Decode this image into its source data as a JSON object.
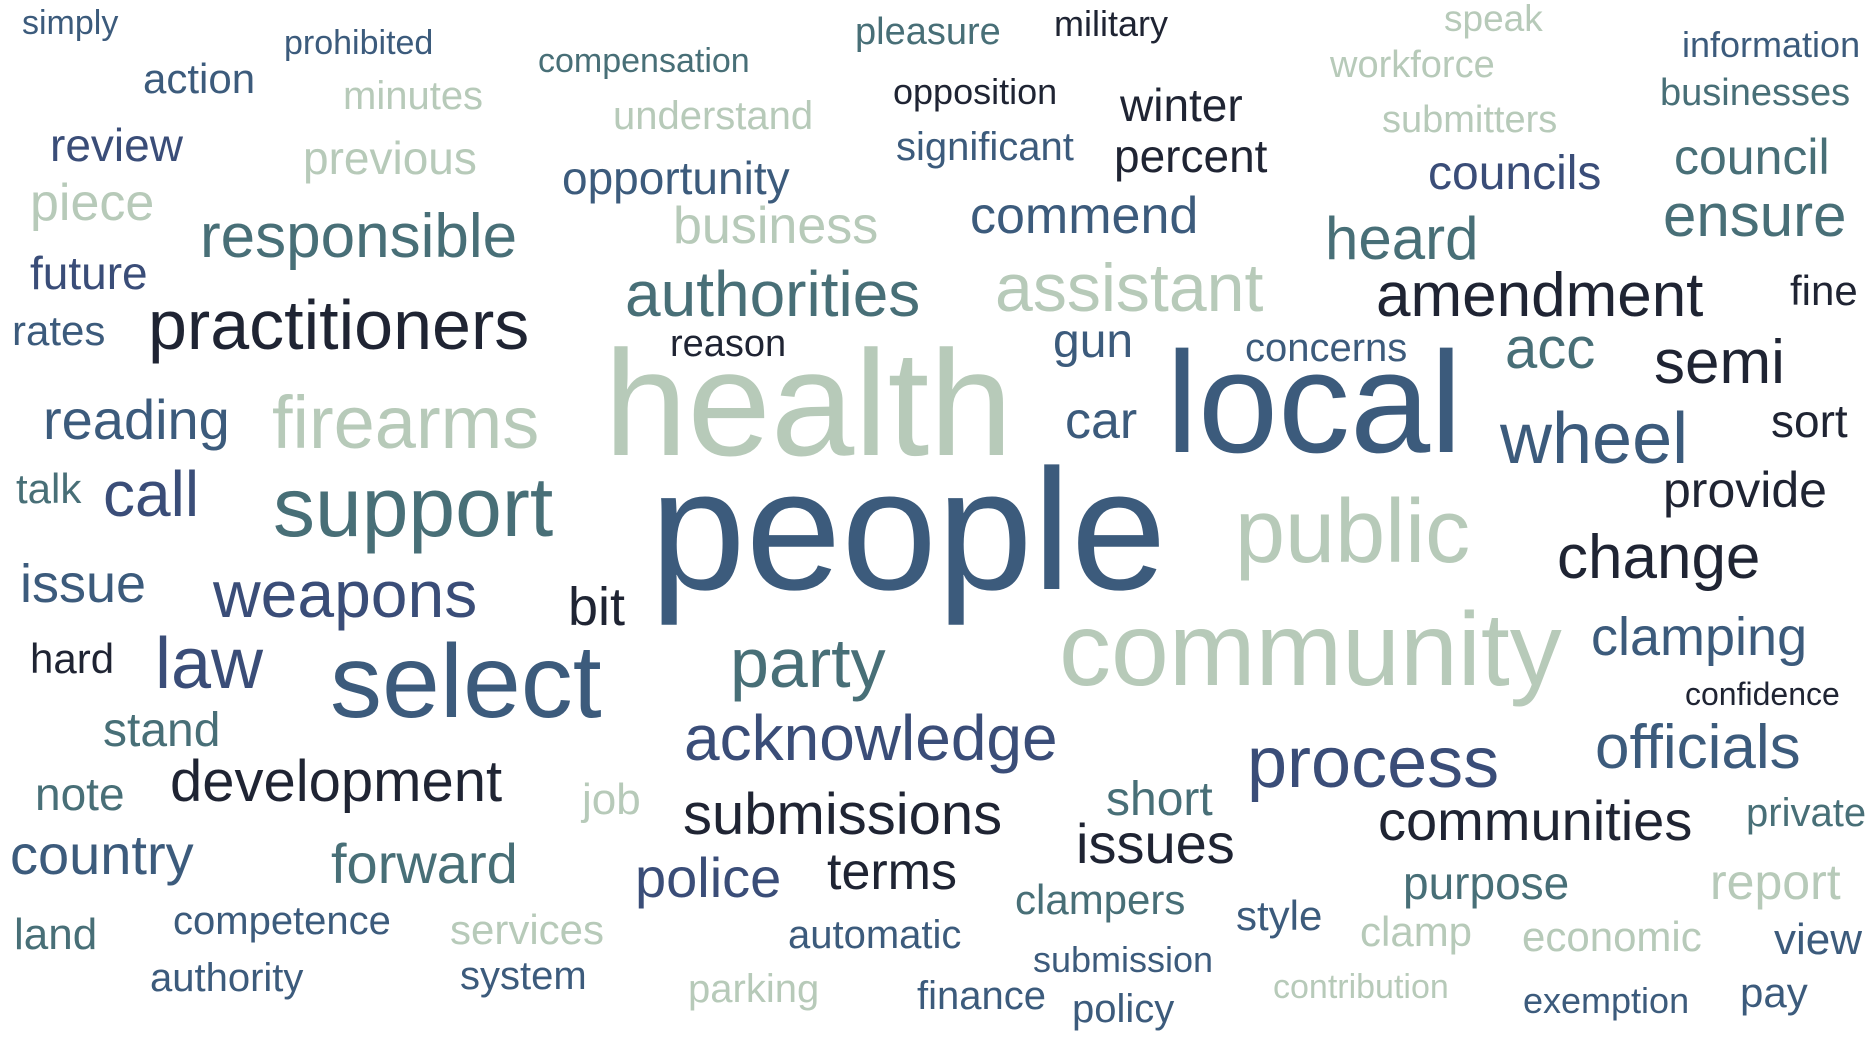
{
  "words": [
    "simply",
    "prohibited",
    "pleasure",
    "military",
    "speak",
    "information",
    "action",
    "compensation",
    "minutes",
    "opposition",
    "workforce",
    "businesses",
    "review",
    "understand",
    "winter",
    "submitters",
    "previous",
    "significant",
    "percent",
    "council",
    "opportunity",
    "councils",
    "piece",
    "business",
    "commend",
    "ensure",
    "responsible",
    "heard",
    "future",
    "authorities",
    "assistant",
    "amendment",
    "fine",
    "rates",
    "practitioners",
    "reason",
    "gun",
    "concerns",
    "acc",
    "semi",
    "health",
    "local",
    "reading",
    "firearms",
    "car",
    "sort",
    "wheel",
    "talk",
    "call",
    "support",
    "provide",
    "people",
    "public",
    "change",
    "issue",
    "weapons",
    "bit",
    "hard",
    "law",
    "select",
    "party",
    "community",
    "clamping",
    "confidence",
    "stand",
    "acknowledge",
    "officials",
    "process",
    "note",
    "development",
    "job",
    "short",
    "submissions",
    "private",
    "communities",
    "country",
    "forward",
    "issues",
    "police",
    "terms",
    "report",
    "purpose",
    "clampers",
    "land",
    "competence",
    "services",
    "style",
    "automatic",
    "clamp",
    "economic",
    "view",
    "submission",
    "authority",
    "system",
    "parking",
    "finance",
    "contribution",
    "exemption",
    "pay",
    "policy"
  ]
}
